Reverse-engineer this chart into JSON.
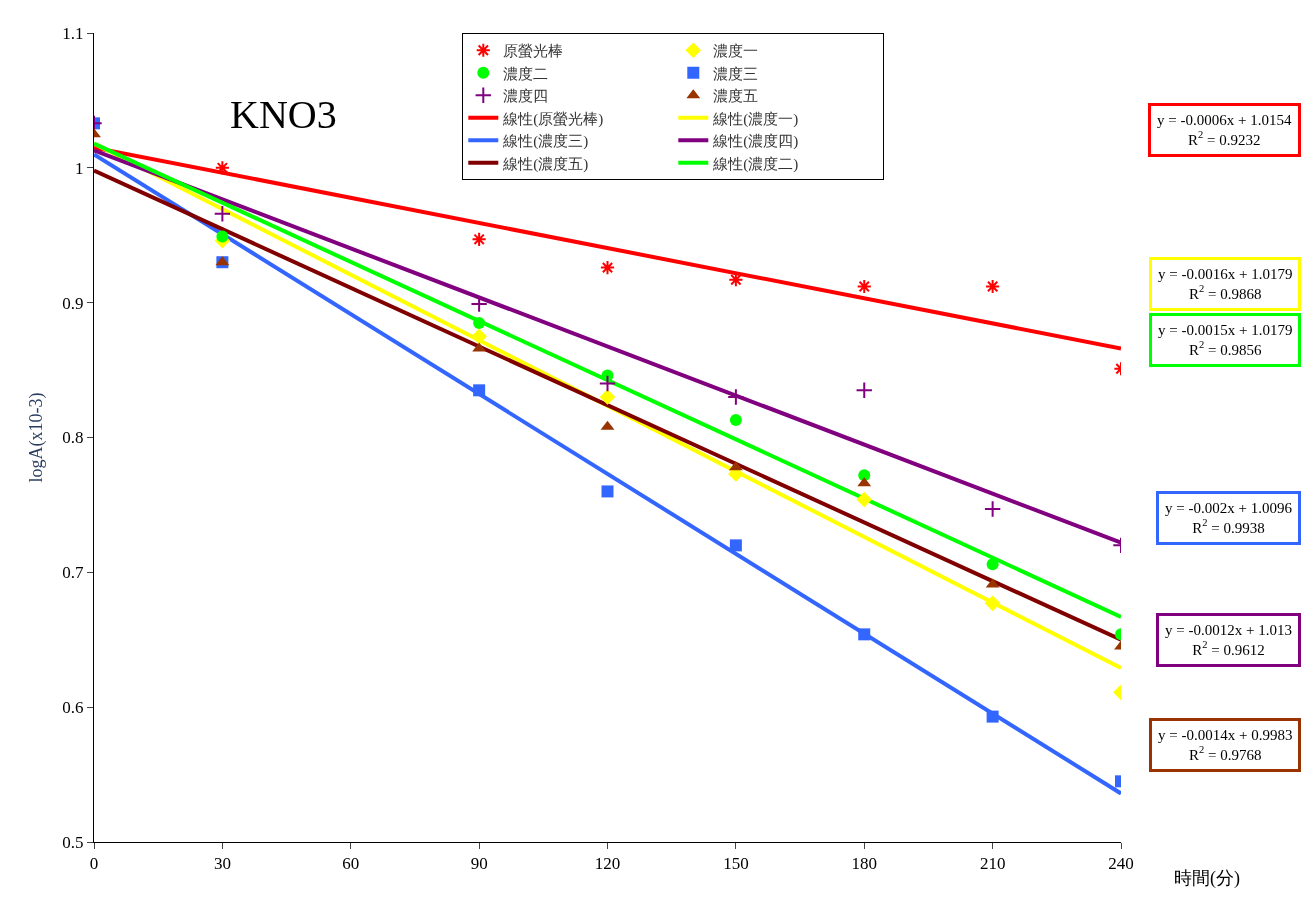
{
  "chart_data": {
    "type": "scatter",
    "title": "KNO3",
    "xlabel": "時間(分)",
    "ylabel": "logA(x10-3)",
    "xlim": [
      0,
      240
    ],
    "xticks": [
      0,
      30,
      60,
      90,
      120,
      150,
      180,
      210,
      240
    ],
    "ylim": [
      0.5,
      1.1
    ],
    "yticks": [
      0.5,
      0.6,
      0.7,
      0.8,
      0.9,
      1,
      1.1
    ],
    "legend": "top right",
    "series": [
      {
        "name": "原螢光棒",
        "color": "#ff0000",
        "marker": "cross",
        "x": [
          30,
          90,
          120,
          150,
          180,
          210,
          240
        ],
        "values": [
          1.0,
          0.947,
          0.926,
          0.917,
          0.912,
          0.912,
          0.851
        ]
      },
      {
        "name": "濃度一",
        "color": "#ffff00",
        "marker": "diamond",
        "x": [
          30,
          90,
          120,
          150,
          180,
          210,
          240
        ],
        "values": [
          0.946,
          0.875,
          0.83,
          0.773,
          0.754,
          0.677,
          0.611
        ]
      },
      {
        "name": "濃度二",
        "color": "#00ff00",
        "marker": "circle",
        "x": [
          30,
          90,
          120,
          150,
          180,
          210,
          240
        ],
        "values": [
          0.949,
          0.885,
          0.846,
          0.813,
          0.772,
          0.706,
          0.654
        ]
      },
      {
        "name": "濃度三",
        "color": "#3366ff",
        "marker": "square",
        "x": [
          0,
          30,
          90,
          120,
          150,
          180,
          210,
          240
        ],
        "values": [
          1.033,
          0.93,
          0.835,
          0.76,
          0.72,
          0.654,
          0.593,
          0.545
        ]
      },
      {
        "name": "濃度四",
        "color": "#800080",
        "marker": "cross",
        "x": [
          0,
          30,
          90,
          120,
          150,
          180,
          210,
          240
        ],
        "values": [
          1.033,
          0.966,
          0.899,
          0.84,
          0.83,
          0.835,
          0.747,
          0.72
        ]
      },
      {
        "name": "濃度五",
        "color": "#993300",
        "marker": "triangle",
        "x": [
          0,
          30,
          90,
          120,
          150,
          180,
          210,
          240
        ],
        "values": [
          1.025,
          0.93,
          0.866,
          0.808,
          0.778,
          0.766,
          0.691,
          0.645
        ]
      },
      {
        "name": "線性(原螢光棒)",
        "type": "line",
        "color": "#ff0000",
        "x": [
          0,
          240
        ],
        "values": [
          1.015,
          0.866
        ]
      },
      {
        "name": "線性(濃度一)",
        "type": "line",
        "color": "#ffff00",
        "x": [
          0,
          240
        ],
        "values": [
          1.018,
          0.629
        ]
      },
      {
        "name": "線性(濃度三)",
        "type": "line",
        "color": "#3366ff",
        "x": [
          0,
          240
        ],
        "values": [
          1.01,
          0.536
        ]
      },
      {
        "name": "線性(濃度四)",
        "type": "line",
        "color": "#800080",
        "x": [
          0,
          240
        ],
        "values": [
          1.013,
          0.722
        ]
      },
      {
        "name": "線性(濃度五)",
        "type": "line",
        "color": "#800000",
        "x": [
          0,
          240
        ],
        "values": [
          0.998,
          0.65
        ]
      },
      {
        "name": "線性(濃度二)",
        "type": "line",
        "color": "#00ff00",
        "x": [
          0,
          240
        ],
        "values": [
          1.018,
          0.667
        ]
      }
    ],
    "annotations": [
      "y = -0.0006x + 1.0154\nR$^{2}$ = 0.9232",
      "y = -0.0016x + 1.0179\nR$^{2}$ = 0.9868",
      "y = -0.0015x + 1.0179\nR$^{2}$ = 0.9856",
      "y = -0.002x + 1.0096\nR$^{2}$ = 0.9938",
      "y = -0.0012x + 1.013\nR$^{2}$ = 0.9612",
      "y = -0.0014x + 0.9983\nR$^{2}$ = 0.9768"
    ]
  }
}
